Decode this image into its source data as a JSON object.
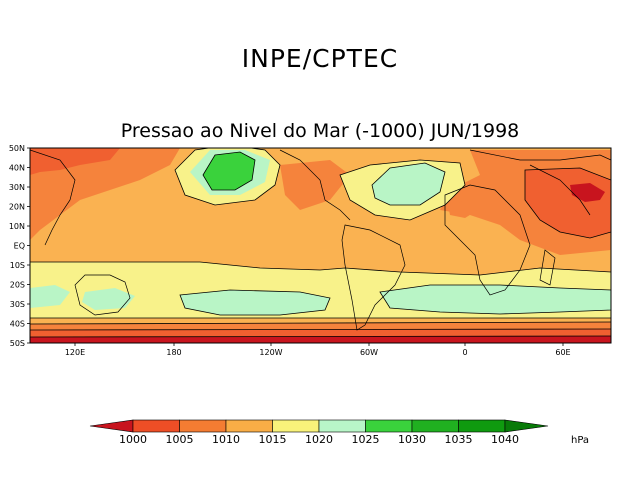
{
  "header": {
    "title": "INPE/CPTEC"
  },
  "map": {
    "title": "Pressao ao Nivel do Mar (-1000) JUN/1998",
    "lat_labels": [
      "50N",
      "40N",
      "30N",
      "20N",
      "10N",
      "EQ",
      "10S",
      "20S",
      "30S",
      "40S",
      "50S"
    ],
    "lon_labels": [
      "120E",
      "180",
      "120W",
      "60W",
      "0",
      "60E"
    ]
  },
  "colorbar": {
    "levels": [
      "1000",
      "1005",
      "1010",
      "1015",
      "1020",
      "1025",
      "1030",
      "1035",
      "1040"
    ],
    "colors": [
      "#c8141e",
      "#ee4e26",
      "#f47c32",
      "#f9ad46",
      "#f9f27a",
      "#b8f6c8",
      "#3ad23c",
      "#20b020",
      "#0f9a0f",
      "#087a08"
    ],
    "units": "hPa"
  },
  "palette": {
    "band_1005": "#f06030",
    "band_1010": "#f5833c",
    "band_1015": "#fab251",
    "band_1020": "#f8f28a",
    "band_1025": "#b9f5c6",
    "band_1030": "#3ad23c"
  }
}
